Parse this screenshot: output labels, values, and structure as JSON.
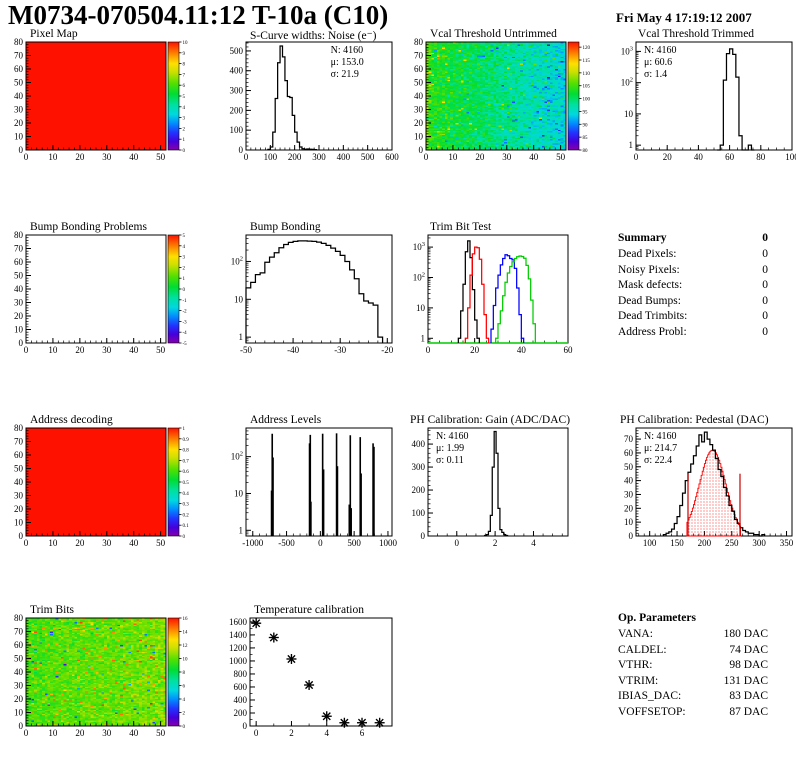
{
  "page": {
    "title": "M0734-070504.11:12 T-10a (C10)",
    "date": "Fri May  4 17:19:12 2007"
  },
  "summary": {
    "title": "Summary",
    "total": "0",
    "rows": [
      {
        "label": "Dead Pixels:",
        "value": "0"
      },
      {
        "label": "Noisy Pixels:",
        "value": "0"
      },
      {
        "label": "Mask defects:",
        "value": "0"
      },
      {
        "label": "Dead Bumps:",
        "value": "0"
      },
      {
        "label": "Dead Trimbits:",
        "value": "0"
      },
      {
        "label": "Address Probl:",
        "value": "0"
      }
    ]
  },
  "op_parameters": {
    "title": "Op. Parameters",
    "rows": [
      {
        "label": "VANA:",
        "value": "180 DAC"
      },
      {
        "label": "CALDEL:",
        "value": "74 DAC"
      },
      {
        "label": "VTHR:",
        "value": "98 DAC"
      },
      {
        "label": "VTRIM:",
        "value": "131 DAC"
      },
      {
        "label": "IBIAS_DAC:",
        "value": "83 DAC"
      },
      {
        "label": "VOFFSETOP:",
        "value": "87 DAC"
      }
    ]
  },
  "palette": [
    [
      0,
      "#8800aa"
    ],
    [
      0.08,
      "#4400dd"
    ],
    [
      0.16,
      "#2233ff"
    ],
    [
      0.25,
      "#0090ff"
    ],
    [
      0.33,
      "#00d8e0"
    ],
    [
      0.42,
      "#00e0a0"
    ],
    [
      0.52,
      "#00dd33"
    ],
    [
      0.62,
      "#55e000"
    ],
    [
      0.72,
      "#c8e000"
    ],
    [
      0.8,
      "#ffe000"
    ],
    [
      0.88,
      "#ff9100"
    ],
    [
      1,
      "#ff1100"
    ]
  ],
  "chart_data": [
    {
      "id": "pixel_map",
      "type": "heatmap",
      "box": "heat",
      "title": "Pixel Map",
      "xlim": [
        0,
        52
      ],
      "ylim": [
        0,
        80
      ],
      "xticks": [
        0,
        10,
        20,
        30,
        40,
        50
      ],
      "yticks": [
        0,
        10,
        20,
        30,
        40,
        50,
        60,
        70,
        80
      ],
      "xminor": 2,
      "yminor": 2,
      "fill": "uniform",
      "colorbar": {
        "min": 0,
        "max": 10,
        "ticks": [
          0,
          1,
          2,
          3,
          4,
          5,
          6,
          7,
          8,
          9,
          10
        ]
      }
    },
    {
      "id": "scurve_noise",
      "type": "histogram",
      "box": "c2",
      "title": "S-Curve widths: Noise (e⁻)",
      "xlim": [
        0,
        600
      ],
      "ylim": [
        0,
        545
      ],
      "xticks": [
        0,
        100,
        200,
        300,
        400,
        500,
        600
      ],
      "yticks": [
        0,
        100,
        200,
        300,
        400,
        500
      ],
      "xminor": 20,
      "yminor": 20,
      "stats": {
        "anchor": "right",
        "lines": [
          "N: 4160",
          "μ: 153.0",
          "σ: 21.9"
        ]
      },
      "series": [
        {
          "color": "#000000",
          "x0": 90,
          "binWidth": 10,
          "counts": [
            3,
            15,
            90,
            260,
            440,
            525,
            470,
            350,
            270,
            265,
            175,
            90,
            40,
            15,
            6,
            4,
            5,
            4,
            3,
            2
          ]
        }
      ]
    },
    {
      "id": "vcal_untrimmed",
      "type": "heatmap",
      "box": "heat",
      "title": "Vcal Threshold Untrimmed",
      "xlim": [
        0,
        52
      ],
      "ylim": [
        0,
        80
      ],
      "xticks": [
        0,
        10,
        20,
        30,
        40,
        50
      ],
      "yticks": [
        0,
        10,
        20,
        30,
        40,
        50,
        60,
        70,
        80
      ],
      "xminor": 2,
      "yminor": 2,
      "fill": "noise",
      "vmin": 80,
      "vmax": 122,
      "noise": {
        "seed": 7,
        "base": 104,
        "xslope": -10,
        "sd": 4.2,
        "hiProb": 0.02,
        "hiShift": 9,
        "loProb": 0.015,
        "loShift": -8,
        "edgeBoost": 6
      },
      "colorbar": {
        "min": 80,
        "max": 122,
        "ticks": [
          80,
          85,
          90,
          95,
          100,
          105,
          110,
          115,
          120
        ]
      }
    },
    {
      "id": "vcal_trimmed",
      "type": "histogram",
      "box": "c4",
      "title": "Vcal Threshold Trimmed",
      "xlim": [
        0,
        100
      ],
      "xticks": [
        0,
        20,
        40,
        60,
        80,
        100
      ],
      "xminor": 5,
      "ylog": true,
      "ylim": [
        0.7,
        2000
      ],
      "ylabels": [
        "1",
        "10",
        "10^2",
        "10^3"
      ],
      "stats": {
        "anchor": "left",
        "lines": [
          "N: 4160",
          "μ: 60.6",
          "σ:  1.4"
        ]
      },
      "series": [
        {
          "color": "#000000",
          "x0": 52,
          "binWidth": 2,
          "counts": [
            0,
            1,
            120,
            850,
            1200,
            800,
            150,
            2,
            0,
            0,
            1,
            0
          ]
        }
      ]
    },
    {
      "id": "bump_problems",
      "type": "heatmap",
      "box": "heat",
      "title": "Bump Bonding Problems",
      "xlim": [
        0,
        52
      ],
      "ylim": [
        0,
        80
      ],
      "xticks": [
        0,
        10,
        20,
        30,
        40,
        50
      ],
      "yticks": [
        0,
        10,
        20,
        30,
        40,
        50,
        60,
        70,
        80
      ],
      "xminor": 2,
      "yminor": 2,
      "fill": "empty",
      "colorbar": {
        "min": -5,
        "max": 5,
        "ticks": [
          -5,
          -4,
          -3,
          -2,
          -1,
          0,
          1,
          2,
          3,
          4,
          5
        ]
      }
    },
    {
      "id": "bump_bonding",
      "type": "histogram",
      "box": "c2",
      "title": "Bump Bonding",
      "xlim": [
        -50,
        -19
      ],
      "xticks": [
        -50,
        -40,
        -30,
        -20
      ],
      "xminor": 2,
      "ylog": true,
      "ylim": [
        0.7,
        500
      ],
      "ylabels": [
        "1",
        "10",
        "10^2"
      ],
      "series": [
        {
          "color": "#000000",
          "x0": -50,
          "binWidth": 1,
          "counts": [
            20,
            28,
            45,
            50,
            95,
            130,
            170,
            230,
            280,
            320,
            340,
            350,
            350,
            345,
            340,
            325,
            300,
            265,
            225,
            185,
            145,
            100,
            60,
            35,
            14,
            9,
            8,
            7,
            1
          ]
        }
      ]
    },
    {
      "id": "trimbit_test",
      "type": "histogram",
      "box": "c3",
      "title": "Trim Bit Test",
      "xlim": [
        0,
        60
      ],
      "xticks": [
        0,
        20,
        40,
        60
      ],
      "xminor": 5,
      "ylog": true,
      "ylim": [
        0.7,
        2500
      ],
      "ylabels": [
        "1",
        "10",
        "10^2",
        "10^3"
      ],
      "baseline_color": "#00cc00",
      "series": [
        {
          "color": "#000000",
          "x0": 13,
          "binWidth": 1,
          "counts": [
            1,
            8,
            60,
            700,
            1600,
            450,
            40,
            4,
            1
          ]
        },
        {
          "color": "#ff0000",
          "x0": 16,
          "binWidth": 1,
          "counts": [
            1,
            10,
            120,
            600,
            1000,
            950,
            400,
            60,
            6,
            1
          ]
        },
        {
          "color": "#0000ff",
          "x0": 27,
          "binWidth": 1,
          "counts": [
            2,
            12,
            45,
            120,
            260,
            420,
            560,
            520,
            420,
            380,
            200,
            45,
            6,
            1
          ]
        },
        {
          "color": "#00cc00",
          "x0": 29,
          "binWidth": 1,
          "counts": [
            1,
            3,
            8,
            25,
            70,
            140,
            230,
            330,
            420,
            480,
            510,
            490,
            430,
            250,
            90,
            18,
            3
          ]
        }
      ]
    },
    {
      "id": "address_decoding",
      "type": "heatmap",
      "box": "heat",
      "title": "Address decoding",
      "xlim": [
        0,
        52
      ],
      "ylim": [
        0,
        80
      ],
      "xticks": [
        0,
        10,
        20,
        30,
        40,
        50
      ],
      "yticks": [
        0,
        10,
        20,
        30,
        40,
        50,
        60,
        70,
        80
      ],
      "xminor": 2,
      "yminor": 2,
      "fill": "uniform",
      "colorbar": {
        "min": 0,
        "max": 1,
        "ticks": [
          0,
          0.1,
          0.2,
          0.3,
          0.4,
          0.5,
          0.6,
          0.7,
          0.8,
          0.9,
          1
        ]
      }
    },
    {
      "id": "address_levels",
      "type": "spikes",
      "box": "c2",
      "title": "Address Levels",
      "xlim": [
        -1100,
        1060
      ],
      "xticks": [
        -1000,
        -500,
        0,
        500,
        1000
      ],
      "xminor": 100,
      "ylog": true,
      "ylim": [
        0.7,
        600
      ],
      "ylabels": [
        "1",
        "10",
        "10^2"
      ],
      "spikes": [
        [
          -722,
          12
        ],
        [
          -712,
          420
        ],
        [
          -700,
          95
        ],
        [
          -160,
          230
        ],
        [
          -149,
          390
        ],
        [
          -140,
          6
        ],
        [
          34,
          420
        ],
        [
          48,
          45
        ],
        [
          240,
          430
        ],
        [
          253,
          55
        ],
        [
          428,
          5
        ],
        [
          443,
          380
        ],
        [
          456,
          4
        ],
        [
          590,
          340
        ],
        [
          603,
          35
        ],
        [
          780,
          230
        ],
        [
          793,
          185
        ]
      ]
    },
    {
      "id": "ph_gain",
      "type": "histogram",
      "box": "c3",
      "title": "PH Calibration: Gain (ADC/DAC)",
      "xlim": [
        -1.5,
        5.8
      ],
      "xticks": [
        0,
        2,
        4
      ],
      "xminor": 0.5,
      "ylim": [
        0,
        470
      ],
      "yticks": [
        0,
        100,
        200,
        300,
        400
      ],
      "yminor": 20,
      "stats": {
        "anchor": "left",
        "lines": [
          "N: 4160",
          "μ: 1.99",
          "σ: 0.11"
        ]
      },
      "series": [
        {
          "color": "#000000",
          "x0": 1.45,
          "binWidth": 0.1,
          "counts": [
            2,
            6,
            20,
            90,
            300,
            455,
            360,
            120,
            28,
            16,
            6,
            2
          ]
        }
      ]
    },
    {
      "id": "ph_pedestal",
      "type": "histogram",
      "box": "c4",
      "title": "PH Calibration: Pedestal (DAC)",
      "xlim": [
        75,
        360
      ],
      "xticks": [
        100,
        150,
        200,
        250,
        300,
        350
      ],
      "xminor": 10,
      "ylim": [
        0,
        78
      ],
      "yticks": [
        0,
        10,
        20,
        30,
        40,
        50,
        60,
        70
      ],
      "yminor": 2,
      "stats": {
        "anchor": "left",
        "lines": [
          "N: 4160",
          "μ: 214.7",
          "σ: 22.4"
        ],
        "colors": [
          "#000000",
          "#cc0000",
          "#cc0000"
        ]
      },
      "series": [
        {
          "color": "#000000",
          "x0": 125,
          "binWidth": 5,
          "counts": [
            1,
            2,
            3,
            5,
            9,
            14,
            22,
            31,
            40,
            46,
            52,
            58,
            65,
            73,
            68,
            75,
            70,
            66,
            62,
            56,
            48,
            43,
            35,
            29,
            22,
            18,
            12,
            9,
            6,
            4,
            3,
            2,
            2,
            1,
            1,
            0,
            1
          ]
        }
      ],
      "redfill": {
        "mu": 215,
        "sigma": 24,
        "amp": 62,
        "from": 168,
        "to": 266,
        "binWidth": 2,
        "color": "#ff0000"
      },
      "vlines": {
        "color": "#cc0000",
        "height": 45,
        "xs": [
          170,
          265
        ]
      }
    },
    {
      "id": "trim_bits",
      "type": "heatmap",
      "box": "heat",
      "title": "Trim Bits",
      "xlim": [
        0,
        52
      ],
      "ylim": [
        0,
        80
      ],
      "xticks": [
        0,
        10,
        20,
        30,
        40,
        50
      ],
      "yticks": [
        0,
        10,
        20,
        30,
        40,
        50,
        60,
        70,
        80
      ],
      "xminor": 2,
      "yminor": 2,
      "fill": "noise",
      "vmin": 0,
      "vmax": 16,
      "noise": {
        "seed": 13,
        "base": 9.6,
        "xslope": 0.8,
        "sd": 1.25,
        "hiProb": 0.035,
        "hiShift": 4.2,
        "loProb": 0.012,
        "loShift": -6.5,
        "edgeBoost": 0
      },
      "colorbar": {
        "min": 0,
        "max": 16,
        "ticks": [
          0,
          2,
          4,
          6,
          8,
          10,
          12,
          14,
          16
        ]
      }
    },
    {
      "id": "temperature",
      "type": "scatter",
      "box": "temp",
      "title": "Temperature calibration",
      "xlim": [
        -0.35,
        7.7
      ],
      "xticks": [
        0,
        2,
        4,
        6
      ],
      "xminor": 1,
      "ylim": [
        0,
        1660
      ],
      "yticks": [
        0,
        200,
        400,
        600,
        800,
        1000,
        1200,
        1400,
        1600
      ],
      "yminor": 100,
      "marker_color": "#000000",
      "points": [
        [
          0,
          1580
        ],
        [
          1,
          1360
        ],
        [
          2,
          1030
        ],
        [
          3,
          630
        ],
        [
          4,
          150
        ],
        [
          5,
          50
        ],
        [
          6,
          50
        ],
        [
          7,
          50
        ]
      ]
    }
  ]
}
